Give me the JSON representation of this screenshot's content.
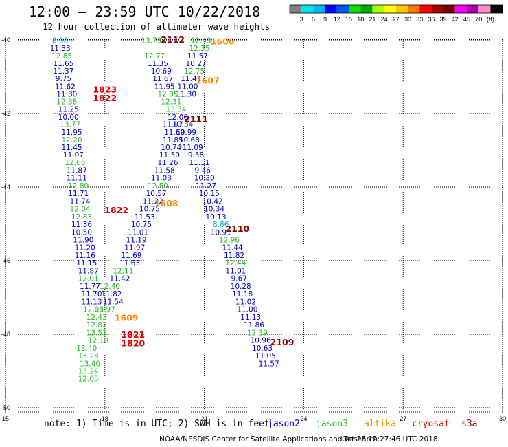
{
  "header": {
    "title": "12:00 – 23:59 UTC 10/22/2018",
    "subtitle": "12 hour collection of altimeter wave heights"
  },
  "colorbar": {
    "colors": [
      "#808080",
      "#00e6e6",
      "#00b4ff",
      "#0000ff",
      "#0055ff",
      "#00e600",
      "#00aa00",
      "#aaff00",
      "#ffff00",
      "#ffc800",
      "#ff7800",
      "#ff0000",
      "#aa0000",
      "#7a0000",
      "#ff00ff",
      "#aa00aa",
      "#ff8cc8",
      "#000000"
    ],
    "labels": [
      "3",
      "6",
      "9",
      "12",
      "15",
      "18",
      "21",
      "24",
      "27",
      "30",
      "33",
      "36",
      "39",
      "42",
      "45",
      "70",
      "(ft)"
    ]
  },
  "footer": {
    "note": "note: 1) Time is in UTC; 2) SWH is in feet",
    "credit": "NOAA/NESDIS Center for Satellite Applications and Research",
    "timestamp": "Oct 23 12:27:46 UTC 2018"
  },
  "satellites": [
    {
      "name": "jason2",
      "color": "#0000cc"
    },
    {
      "name": "jason3",
      "color": "#22bb22"
    },
    {
      "name": "altika",
      "color": "#ff8c00"
    },
    {
      "name": "cryosat",
      "color": "#dd0000"
    },
    {
      "name": "s3a",
      "color": "#880000"
    }
  ],
  "chart_data": {
    "type": "scatter",
    "x_ticks": [
      "15",
      "18",
      "21",
      "24",
      "27",
      "30"
    ],
    "y_ticks": [
      "-40",
      "-42",
      "-44",
      "-46",
      "-48",
      "-50"
    ],
    "xlim": [
      15,
      30
    ],
    "ylim": [
      -50.3,
      -39.9
    ],
    "text_colors": {
      "jason2": "#0000cc",
      "jason3": "#22bb22",
      "altika": "#ff8c00",
      "cryosat": "#dd0000",
      "s3a": "#880000",
      "cyan": "#00aacc"
    },
    "values": [
      {
        "x": 16.65,
        "y": -40.01,
        "v": "8.98",
        "c": "cyan"
      },
      {
        "x": 16.65,
        "y": -40.22,
        "v": "11.33",
        "c": "jason2"
      },
      {
        "x": 16.7,
        "y": -40.43,
        "v": "12.85",
        "c": "jason3"
      },
      {
        "x": 16.75,
        "y": -40.64,
        "v": "11.65",
        "c": "jason2"
      },
      {
        "x": 16.75,
        "y": -40.84,
        "v": "11.37",
        "c": "jason2"
      },
      {
        "x": 16.75,
        "y": -41.05,
        "v": "9.75",
        "c": "jason2"
      },
      {
        "x": 16.8,
        "y": -41.26,
        "v": "11.62",
        "c": "jason2"
      },
      {
        "x": 16.85,
        "y": -41.47,
        "v": "11.80",
        "c": "jason2"
      },
      {
        "x": 16.85,
        "y": -41.67,
        "v": "12.38",
        "c": "jason3"
      },
      {
        "x": 16.9,
        "y": -41.88,
        "v": "11.25",
        "c": "jason2"
      },
      {
        "x": 16.9,
        "y": -42.09,
        "v": "10.00",
        "c": "jason2"
      },
      {
        "x": 16.95,
        "y": -42.29,
        "v": "13.77",
        "c": "jason3"
      },
      {
        "x": 17.0,
        "y": -42.5,
        "v": "11.95",
        "c": "jason2"
      },
      {
        "x": 17.0,
        "y": -42.71,
        "v": "12.20",
        "c": "jason3"
      },
      {
        "x": 17.0,
        "y": -42.92,
        "v": "11.45",
        "c": "jason2"
      },
      {
        "x": 17.05,
        "y": -43.12,
        "v": "11.07",
        "c": "jason2"
      },
      {
        "x": 17.1,
        "y": -43.33,
        "v": "12.66",
        "c": "jason3"
      },
      {
        "x": 17.15,
        "y": -43.54,
        "v": "11.87",
        "c": "jason2"
      },
      {
        "x": 17.15,
        "y": -43.75,
        "v": "11.11",
        "c": "jason2"
      },
      {
        "x": 17.2,
        "y": -43.96,
        "v": "12.80",
        "c": "jason3"
      },
      {
        "x": 17.2,
        "y": -44.17,
        "v": "11.71",
        "c": "jason2"
      },
      {
        "x": 17.25,
        "y": -44.38,
        "v": "11.74",
        "c": "jason2"
      },
      {
        "x": 17.25,
        "y": -44.59,
        "v": "12.04",
        "c": "jason3"
      },
      {
        "x": 17.3,
        "y": -44.8,
        "v": "12.83",
        "c": "jason3"
      },
      {
        "x": 17.3,
        "y": -45.01,
        "v": "11.36",
        "c": "jason2"
      },
      {
        "x": 17.3,
        "y": -45.22,
        "v": "10.50",
        "c": "jason2"
      },
      {
        "x": 17.35,
        "y": -45.43,
        "v": "11.90",
        "c": "jason2"
      },
      {
        "x": 17.4,
        "y": -45.64,
        "v": "11.20",
        "c": "jason2"
      },
      {
        "x": 17.4,
        "y": -45.85,
        "v": "11.16",
        "c": "jason2"
      },
      {
        "x": 17.45,
        "y": -46.06,
        "v": "11.15",
        "c": "jason2"
      },
      {
        "x": 17.5,
        "y": -46.27,
        "v": "11.87",
        "c": "jason2"
      },
      {
        "x": 17.5,
        "y": -46.48,
        "v": "12.01",
        "c": "jason3"
      },
      {
        "x": 17.55,
        "y": -46.69,
        "v": "11.77",
        "c": "jason2"
      },
      {
        "x": 17.6,
        "y": -46.9,
        "v": "11.70",
        "c": "jason2"
      },
      {
        "x": 17.6,
        "y": -47.11,
        "v": "11.13",
        "c": "jason2"
      },
      {
        "x": 17.65,
        "y": -47.32,
        "v": "12.08",
        "c": "jason3"
      },
      {
        "x": 17.75,
        "y": -47.53,
        "v": "12.43",
        "c": "jason3"
      },
      {
        "x": 17.75,
        "y": -47.74,
        "v": "12.82",
        "c": "jason3"
      },
      {
        "x": 17.75,
        "y": -47.95,
        "v": "13.51",
        "c": "jason3"
      },
      {
        "x": 17.8,
        "y": -48.16,
        "v": "12.10",
        "c": "jason3"
      },
      {
        "x": 17.45,
        "y": -48.37,
        "v": "13.40",
        "c": "jason3"
      },
      {
        "x": 17.5,
        "y": -48.58,
        "v": "13.28",
        "c": "jason3"
      },
      {
        "x": 17.55,
        "y": -48.79,
        "v": "13.40",
        "c": "jason3"
      },
      {
        "x": 17.5,
        "y": -49.0,
        "v": "13.24",
        "c": "jason3"
      },
      {
        "x": 17.5,
        "y": -49.21,
        "v": "12.05",
        "c": "jason3"
      },
      {
        "x": 18.25,
        "y": -47.11,
        "v": "11.54",
        "c": "jason2"
      },
      {
        "x": 18.2,
        "y": -46.9,
        "v": "11.82",
        "c": "jason2"
      },
      {
        "x": 18.0,
        "y": -47.32,
        "v": "11.97",
        "c": "jason3"
      },
      {
        "x": 18.15,
        "y": -46.69,
        "v": "12.40",
        "c": "jason3"
      },
      {
        "x": 18.45,
        "y": -46.48,
        "v": "11.42",
        "c": "jason2"
      },
      {
        "x": 18.55,
        "y": -46.27,
        "v": "12.11",
        "c": "jason3"
      },
      {
        "x": 18.75,
        "y": -46.06,
        "v": "11.63",
        "c": "jason2"
      },
      {
        "x": 18.8,
        "y": -45.85,
        "v": "11.69",
        "c": "jason2"
      },
      {
        "x": 18.9,
        "y": -45.64,
        "v": "11.97",
        "c": "jason2"
      },
      {
        "x": 18.95,
        "y": -45.43,
        "v": "11.19",
        "c": "jason2"
      },
      {
        "x": 19.0,
        "y": -45.22,
        "v": "11.01",
        "c": "jason2"
      },
      {
        "x": 19.1,
        "y": -45.01,
        "v": "10.75",
        "c": "jason2"
      },
      {
        "x": 19.2,
        "y": -44.8,
        "v": "11.53",
        "c": "jason2"
      },
      {
        "x": 19.35,
        "y": -44.59,
        "v": "10.75",
        "c": "jason2"
      },
      {
        "x": 19.45,
        "y": -44.38,
        "v": "11.22",
        "c": "jason2"
      },
      {
        "x": 19.55,
        "y": -44.17,
        "v": "10.57",
        "c": "jason2"
      },
      {
        "x": 19.6,
        "y": -43.96,
        "v": "12.50",
        "c": "jason3"
      },
      {
        "x": 19.7,
        "y": -43.75,
        "v": "11.03",
        "c": "jason2"
      },
      {
        "x": 19.8,
        "y": -43.54,
        "v": "11.58",
        "c": "jason2"
      },
      {
        "x": 19.9,
        "y": -43.33,
        "v": "11.26",
        "c": "jason2"
      },
      {
        "x": 19.95,
        "y": -43.12,
        "v": "11.50",
        "c": "jason2"
      },
      {
        "x": 20.0,
        "y": -42.92,
        "v": "10.74",
        "c": "jason2"
      },
      {
        "x": 20.05,
        "y": -42.71,
        "v": "11.85",
        "c": "jason2"
      },
      {
        "x": 20.1,
        "y": -42.5,
        "v": "11.69",
        "c": "jason2"
      },
      {
        "x": 20.05,
        "y": -42.29,
        "v": "11.97",
        "c": "jason2"
      },
      {
        "x": 20.2,
        "y": -42.09,
        "v": "12.00",
        "c": "jason2"
      },
      {
        "x": 20.15,
        "y": -41.88,
        "v": "13.34",
        "c": "jason3"
      },
      {
        "x": 20.0,
        "y": -41.67,
        "v": "12.31",
        "c": "jason3"
      },
      {
        "x": 19.9,
        "y": -41.47,
        "v": "12.05",
        "c": "jason3"
      },
      {
        "x": 19.8,
        "y": -41.26,
        "v": "11.95",
        "c": "jason2"
      },
      {
        "x": 19.75,
        "y": -41.05,
        "v": "11.67",
        "c": "jason2"
      },
      {
        "x": 19.7,
        "y": -40.84,
        "v": "10.69",
        "c": "jason2"
      },
      {
        "x": 19.6,
        "y": -40.64,
        "v": "11.35",
        "c": "jason2"
      },
      {
        "x": 19.5,
        "y": -40.43,
        "v": "12.77",
        "c": "jason3"
      },
      {
        "x": 19.4,
        "y": -40.01,
        "v": "13.73",
        "c": "jason3"
      },
      {
        "x": 20.9,
        "y": -40.01,
        "v": "12.43",
        "c": "jason3"
      },
      {
        "x": 20.85,
        "y": -40.22,
        "v": "12.35",
        "c": "jason3"
      },
      {
        "x": 20.8,
        "y": -40.43,
        "v": "11.57",
        "c": "jason2"
      },
      {
        "x": 20.75,
        "y": -40.64,
        "v": "10.27",
        "c": "jason2"
      },
      {
        "x": 20.7,
        "y": -40.84,
        "v": "12.75",
        "c": "jason3"
      },
      {
        "x": 20.6,
        "y": -41.05,
        "v": "11.41",
        "c": "jason2"
      },
      {
        "x": 20.5,
        "y": -41.26,
        "v": "11.00",
        "c": "jason2"
      },
      {
        "x": 20.45,
        "y": -41.47,
        "v": "11.30",
        "c": "jason2"
      },
      {
        "x": 20.35,
        "y": -42.29,
        "v": "10.34",
        "c": "jason2"
      },
      {
        "x": 20.45,
        "y": -42.5,
        "v": "10.99",
        "c": "jason2"
      },
      {
        "x": 20.55,
        "y": -42.71,
        "v": "10.68",
        "c": "jason2"
      },
      {
        "x": 20.65,
        "y": -42.92,
        "v": "11.09",
        "c": "jason2"
      },
      {
        "x": 20.75,
        "y": -43.12,
        "v": "9.58",
        "c": "jason2"
      },
      {
        "x": 20.85,
        "y": -43.33,
        "v": "11.11",
        "c": "jason2"
      },
      {
        "x": 20.95,
        "y": -43.54,
        "v": "9.46",
        "c": "jason2"
      },
      {
        "x": 21.0,
        "y": -43.75,
        "v": "10.30",
        "c": "jason2"
      },
      {
        "x": 21.05,
        "y": -43.96,
        "v": "11.27",
        "c": "jason2"
      },
      {
        "x": 21.15,
        "y": -44.17,
        "v": "10.15",
        "c": "jason2"
      },
      {
        "x": 21.25,
        "y": -44.38,
        "v": "10.42",
        "c": "jason2"
      },
      {
        "x": 21.3,
        "y": -44.59,
        "v": "10.34",
        "c": "jason2"
      },
      {
        "x": 21.35,
        "y": -44.8,
        "v": "10.13",
        "c": "jason2"
      },
      {
        "x": 21.5,
        "y": -45.01,
        "v": "8.86",
        "c": "cyan"
      },
      {
        "x": 21.5,
        "y": -45.22,
        "v": "10.91",
        "c": "jason2"
      },
      {
        "x": 21.75,
        "y": -45.43,
        "v": "12.96",
        "c": "jason3"
      },
      {
        "x": 21.85,
        "y": -45.64,
        "v": "11.44",
        "c": "jason2"
      },
      {
        "x": 21.9,
        "y": -45.85,
        "v": "11.82",
        "c": "jason2"
      },
      {
        "x": 21.95,
        "y": -46.06,
        "v": "12.44",
        "c": "jason3"
      },
      {
        "x": 21.95,
        "y": -46.27,
        "v": "11.01",
        "c": "jason2"
      },
      {
        "x": 22.05,
        "y": -46.48,
        "v": "9.67",
        "c": "jason2"
      },
      {
        "x": 22.1,
        "y": -46.69,
        "v": "10.28",
        "c": "jason2"
      },
      {
        "x": 22.15,
        "y": -46.9,
        "v": "11.18",
        "c": "jason2"
      },
      {
        "x": 22.25,
        "y": -47.11,
        "v": "11.02",
        "c": "jason2"
      },
      {
        "x": 22.3,
        "y": -47.32,
        "v": "11.00",
        "c": "jason2"
      },
      {
        "x": 22.4,
        "y": -47.53,
        "v": "11.13",
        "c": "jason2"
      },
      {
        "x": 22.5,
        "y": -47.74,
        "v": "11.86",
        "c": "jason2"
      },
      {
        "x": 22.6,
        "y": -47.95,
        "v": "12.39",
        "c": "jason3"
      },
      {
        "x": 22.7,
        "y": -48.16,
        "v": "10.96",
        "c": "jason2"
      },
      {
        "x": 22.75,
        "y": -48.37,
        "v": "10.63",
        "c": "jason2"
      },
      {
        "x": 22.85,
        "y": -48.58,
        "v": "11.05",
        "c": "jason2"
      },
      {
        "x": 22.95,
        "y": -48.79,
        "v": "11.57",
        "c": "jason2"
      }
    ],
    "time_labels": [
      {
        "x": 18.0,
        "y": -41.34,
        "t": "1823",
        "c": "cryosat"
      },
      {
        "x": 18.0,
        "y": -41.57,
        "t": "1822",
        "c": "cryosat"
      },
      {
        "x": 18.35,
        "y": -44.62,
        "t": "1822",
        "c": "cryosat"
      },
      {
        "x": 18.65,
        "y": -47.54,
        "t": "1609",
        "c": "altika"
      },
      {
        "x": 18.85,
        "y": -48.0,
        "t": "1821",
        "c": "cryosat"
      },
      {
        "x": 18.85,
        "y": -48.23,
        "t": "1820",
        "c": "cryosat"
      },
      {
        "x": 19.85,
        "y": -44.43,
        "t": "1608",
        "c": "altika"
      },
      {
        "x": 20.05,
        "y": -39.98,
        "t": "2112",
        "c": "s3a"
      },
      {
        "x": 21.55,
        "y": -40.03,
        "t": "1606",
        "c": "altika"
      },
      {
        "x": 21.1,
        "y": -41.09,
        "t": "1607",
        "c": "altika"
      },
      {
        "x": 20.75,
        "y": -42.14,
        "t": "2111",
        "c": "s3a"
      },
      {
        "x": 22.0,
        "y": -45.12,
        "t": "2110",
        "c": "s3a"
      },
      {
        "x": 23.35,
        "y": -48.21,
        "t": "2109",
        "c": "s3a"
      }
    ]
  }
}
